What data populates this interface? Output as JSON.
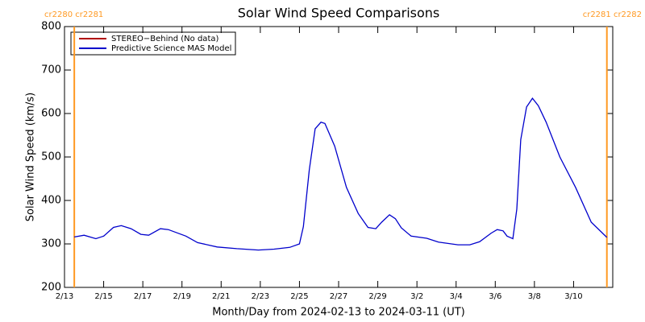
{
  "chart_data": {
    "type": "line",
    "title": "Solar Wind Speed Comparisons",
    "xlabel": "Month/Day from 2024-02-13 to 2024-03-11 (UT)",
    "ylabel": "Solar Wind Speed (km/s)",
    "xlim": [
      0,
      28
    ],
    "ylim": [
      200,
      800
    ],
    "xticks": [
      {
        "value": 0,
        "label": "2/13"
      },
      {
        "value": 2,
        "label": "2/15"
      },
      {
        "value": 4,
        "label": "2/17"
      },
      {
        "value": 6,
        "label": "2/19"
      },
      {
        "value": 8,
        "label": "2/21"
      },
      {
        "value": 10,
        "label": "2/23"
      },
      {
        "value": 12,
        "label": "2/25"
      },
      {
        "value": 14,
        "label": "2/27"
      },
      {
        "value": 16,
        "label": "2/29"
      },
      {
        "value": 18,
        "label": "3/2"
      },
      {
        "value": 20,
        "label": "3/4"
      },
      {
        "value": 22,
        "label": "3/6"
      },
      {
        "value": 24,
        "label": "3/8"
      },
      {
        "value": 26,
        "label": "3/10"
      }
    ],
    "yticks": [
      200,
      300,
      400,
      500,
      600,
      700,
      800
    ],
    "x": [
      0.5,
      1.0,
      1.6,
      2.0,
      2.5,
      2.9,
      3.4,
      3.9,
      4.3,
      4.9,
      5.3,
      6.2,
      6.8,
      7.8,
      8.8,
      9.9,
      10.7,
      11.1,
      11.5,
      12.0,
      12.2,
      12.5,
      12.8,
      13.1,
      13.3,
      13.8,
      14.4,
      15.0,
      15.5,
      15.9,
      16.2,
      16.6,
      16.9,
      17.2,
      17.7,
      18.5,
      19.1,
      20.1,
      20.7,
      21.2,
      21.8,
      22.1,
      22.4,
      22.6,
      22.9,
      23.1,
      23.3,
      23.6,
      23.9,
      24.2,
      24.6,
      25.3,
      26.1,
      26.9,
      27.7
    ],
    "series": [
      {
        "name": "STEREO−Behind (No data)",
        "color": "#b00000",
        "values": [
          null,
          null,
          null,
          null,
          null,
          null,
          null,
          null,
          null,
          null,
          null,
          null,
          null,
          null,
          null,
          null,
          null,
          null,
          null,
          null,
          null,
          null,
          null,
          null,
          null,
          null,
          null,
          null,
          null,
          null,
          null,
          null,
          null,
          null,
          null,
          null,
          null,
          null,
          null,
          null,
          null,
          null,
          null,
          null,
          null,
          null,
          null,
          null,
          null,
          null,
          null,
          null,
          null,
          null,
          null
        ]
      },
      {
        "name": "Predictive Science MAS Model",
        "color": "#0000cc",
        "values": [
          316,
          320,
          312,
          318,
          338,
          342,
          335,
          322,
          320,
          335,
          333,
          318,
          303,
          293,
          289,
          286,
          288,
          290,
          292,
          300,
          340,
          470,
          565,
          580,
          577,
          525,
          430,
          370,
          338,
          335,
          350,
          367,
          358,
          337,
          318,
          313,
          304,
          298,
          298,
          305,
          325,
          333,
          330,
          318,
          312,
          380,
          540,
          615,
          635,
          618,
          580,
          500,
          430,
          350,
          315
        ]
      }
    ],
    "markers": [
      {
        "x": 0.5,
        "label": "cr2280 cr2281"
      },
      {
        "x": 27.7,
        "label": "cr2281 cr2282"
      }
    ],
    "marker_color": "#ff9922"
  }
}
